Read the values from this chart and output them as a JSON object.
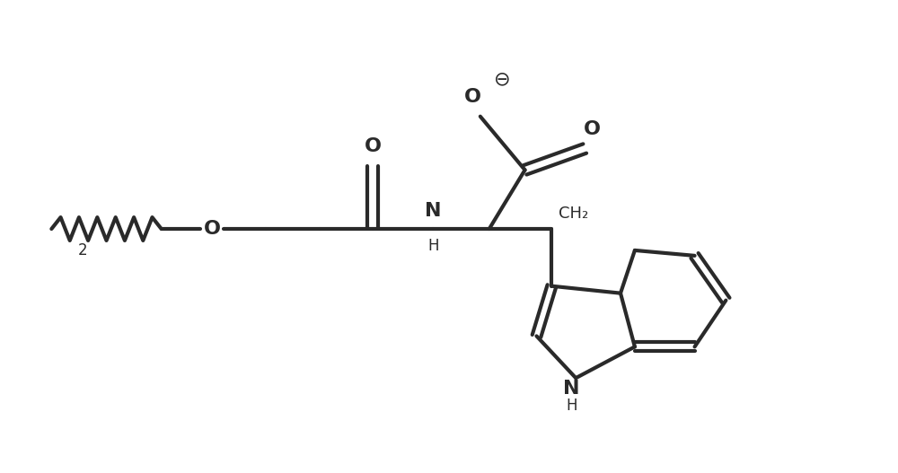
{
  "background_color": "#ffffff",
  "line_color": "#2a2a2a",
  "line_width": 3.0,
  "fig_width": 10.0,
  "fig_height": 5.27,
  "xlim": [
    0,
    10
  ],
  "ylim": [
    0,
    5.27
  ]
}
